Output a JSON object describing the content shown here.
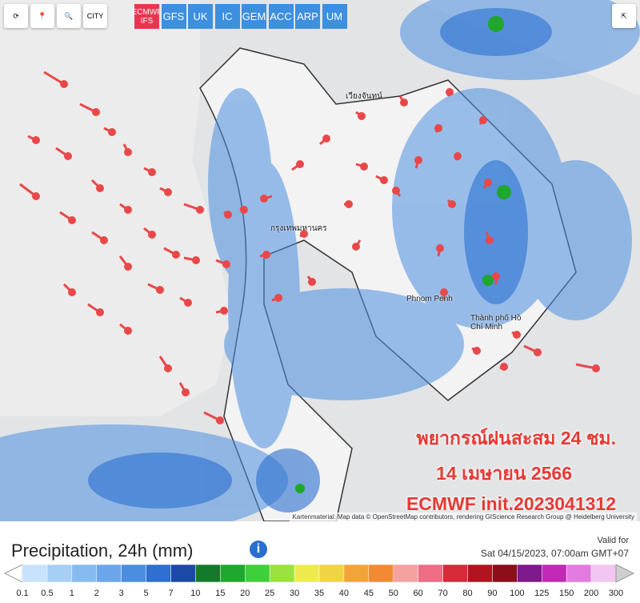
{
  "toolbar": {
    "tools": [
      "CITY"
    ],
    "models": [
      {
        "label": "ECMWF IFS",
        "active": true
      },
      {
        "label": "GFS",
        "active": false
      },
      {
        "label": "UK",
        "active": false
      },
      {
        "label": "IC",
        "active": false
      },
      {
        "label": "GEM",
        "active": false
      },
      {
        "label": "ACC",
        "active": false
      },
      {
        "label": "ARP",
        "active": false
      },
      {
        "label": "UM",
        "active": false
      }
    ]
  },
  "map": {
    "places": [
      "เวียงจันทน์",
      "กรุงเทพมหานคร",
      "Phnom Penh",
      "Thành phố Hồ Chí Minh"
    ],
    "overlay": [
      "พยากรณ์ฝนสะสม 24 ชม.",
      "14 เมษายน 2566",
      "ECMWF init.2023041312"
    ],
    "attribution": "Kartenmaterial: Map data © OpenStreetMap contributors, rendering GIScience Research Group @ Heidelberg University"
  },
  "legend": {
    "title": "Precipitation, 24h (mm)",
    "valid_label": "Valid for",
    "valid_time": "Sat 04/15/2023, 07:00am GMT+07",
    "labels": [
      0.1,
      0.5,
      1,
      2,
      3,
      5,
      7,
      10,
      15,
      20,
      25,
      30,
      35,
      40,
      45,
      50,
      60,
      70,
      80,
      90,
      100,
      125,
      150,
      200,
      300
    ],
    "colors": [
      "#c7e3fb",
      "#a6cff5",
      "#86bbef",
      "#6aa6e9",
      "#4b8ddf",
      "#2e6fcf",
      "#1c49a6",
      "#147a2a",
      "#1fa82d",
      "#3fcf3d",
      "#9ae23e",
      "#eeea4e",
      "#f1d443",
      "#f2a43a",
      "#f08a35",
      "#f3a2a0",
      "#ec6d84",
      "#d62a3a",
      "#b2141f",
      "#8a0f18",
      "#7e1a8c",
      "#c02ab7",
      "#e27ae0",
      "#f2c6f2",
      "#cfcfcf"
    ]
  }
}
